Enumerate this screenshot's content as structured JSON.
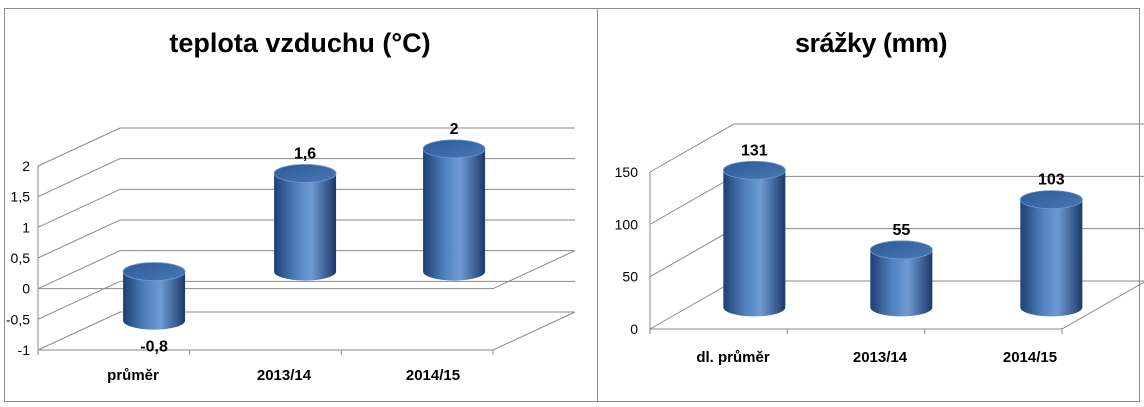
{
  "chart_data": [
    {
      "type": "bar",
      "title": "teplota vzduchu (°C)",
      "categories": [
        "průměr",
        "2013/14",
        "2014/15"
      ],
      "values": [
        -0.8,
        1.6,
        2
      ],
      "data_labels": [
        "-0,8",
        "1,6",
        "2"
      ],
      "yticks": [
        -1,
        -0.5,
        0,
        0.5,
        1,
        1.5,
        2
      ],
      "ytick_labels": [
        "-1",
        "-0,5",
        "0",
        "0,5",
        "1",
        "1,5",
        "2"
      ],
      "ylim": [
        -1,
        2
      ],
      "grid": true,
      "style": "3d-cylinder",
      "color": "#4F81BD"
    },
    {
      "type": "bar",
      "title": "srážky (mm)",
      "categories": [
        "dl. průměr",
        "2013/14",
        "2014/15"
      ],
      "values": [
        131,
        55,
        103
      ],
      "data_labels": [
        "131",
        "55",
        "103"
      ],
      "yticks": [
        0,
        50,
        100,
        150
      ],
      "ytick_labels": [
        "0",
        "50",
        "100",
        "150"
      ],
      "ylim": [
        0,
        150
      ],
      "grid": true,
      "style": "3d-cylinder",
      "color": "#4F81BD"
    }
  ]
}
